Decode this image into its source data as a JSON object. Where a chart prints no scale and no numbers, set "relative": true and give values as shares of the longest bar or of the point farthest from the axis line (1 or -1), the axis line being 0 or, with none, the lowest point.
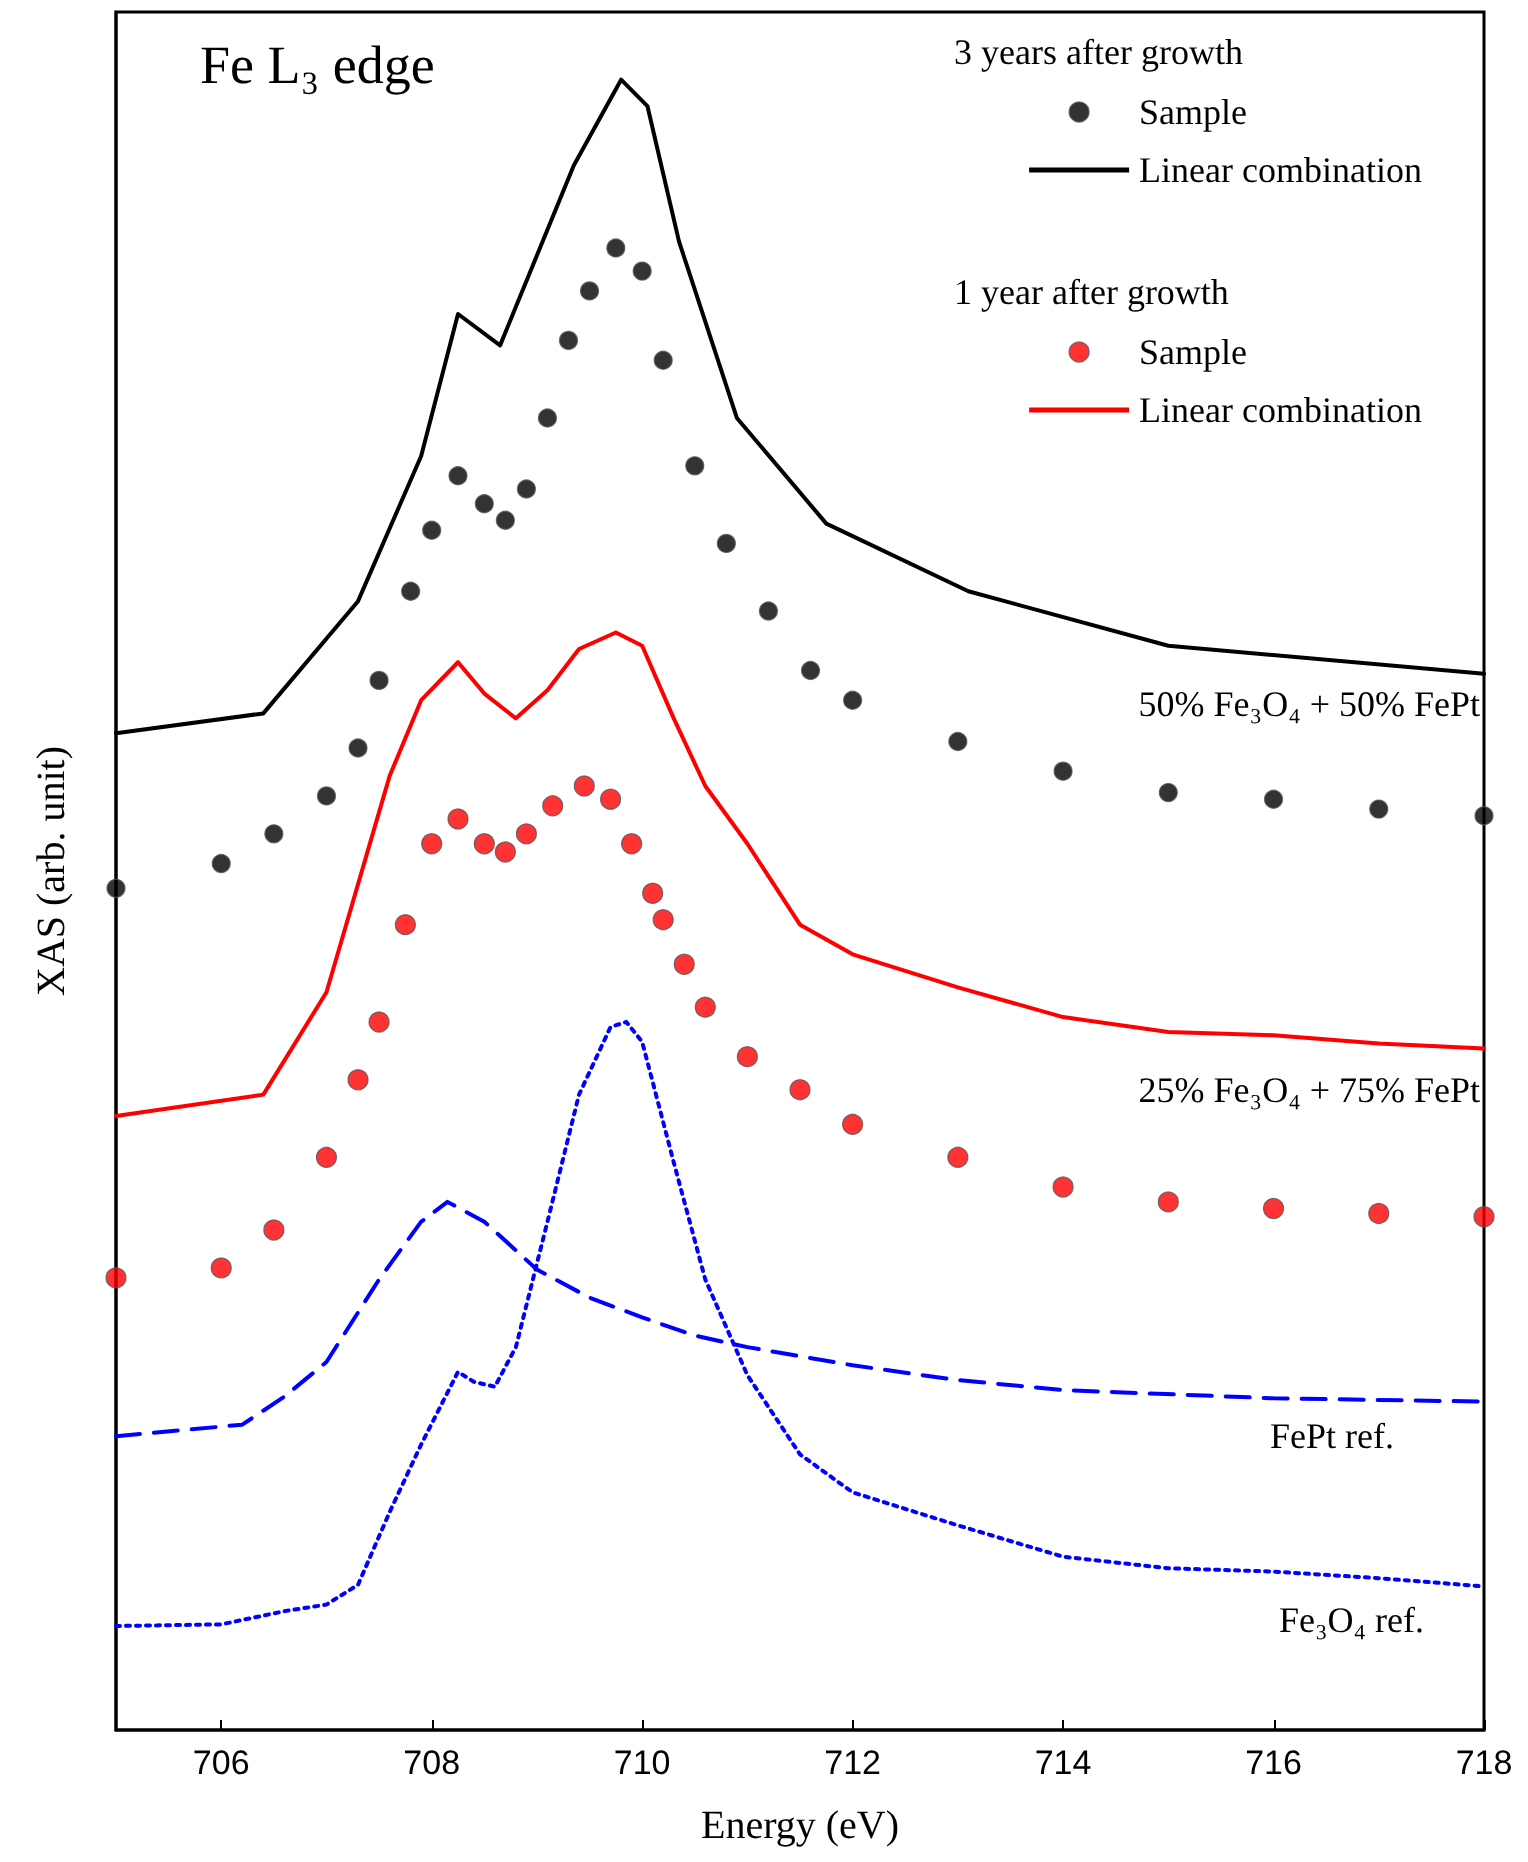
{
  "chart_data": {
    "type": "line",
    "title": "Fe L₃ edge",
    "xlabel": "Energy (eV)",
    "ylabel": "XAS (arb. unit)",
    "relative": true,
    "xlim": [
      705,
      718
    ],
    "xticks": [
      706,
      708,
      710,
      712,
      714,
      716,
      718
    ],
    "legend": "top right",
    "grid": false,
    "annotations": [
      "3 years after growth",
      "1 year after growth",
      "50% Fe₃O₄ + 50% FePt",
      "25% Fe₃O₄ + 75% FePt",
      "FePt ref.",
      "Fe₃O₄ ref."
    ],
    "series": [
      {
        "name": "Sample",
        "type": "scatter",
        "marker": "circle",
        "color": "#000000",
        "x": [
          705,
          706,
          706.5,
          707,
          707.3,
          707.5,
          707.8,
          708,
          708.25,
          708.5,
          708.7,
          708.9,
          709.1,
          709.3,
          709.5,
          709.75,
          710,
          710.2,
          710.5,
          710.8,
          711.2,
          711.6,
          712,
          713,
          714,
          715,
          716,
          717,
          718
        ],
        "values": [
          0.51,
          0.525,
          0.543,
          0.566,
          0.595,
          0.636,
          0.69,
          0.727,
          0.76,
          0.743,
          0.733,
          0.752,
          0.795,
          0.842,
          0.872,
          0.898,
          0.884,
          0.83,
          0.766,
          0.719,
          0.678,
          0.642,
          0.624,
          0.599,
          0.581,
          0.568,
          0.564,
          0.558,
          0.554
        ]
      },
      {
        "name": "Linear combination",
        "marker": "none",
        "line_style": "solid",
        "color": "#000000",
        "x": [
          705,
          706.4,
          707.3,
          707.9,
          708.25,
          708.65,
          709.35,
          709.8,
          710.05,
          710.35,
          710.9,
          711.75,
          713.1,
          715,
          718
        ],
        "values": [
          0.604,
          0.616,
          0.684,
          0.772,
          0.858,
          0.839,
          0.948,
          1,
          0.984,
          0.902,
          0.795,
          0.731,
          0.69,
          0.657,
          0.64
        ]
      },
      {
        "name": "Sample",
        "type": "scatter",
        "marker": "circle",
        "color": "#ff0000",
        "x": [
          705,
          706,
          706.5,
          707,
          707.3,
          707.5,
          707.75,
          708,
          708.25,
          708.5,
          708.7,
          708.9,
          709.15,
          709.45,
          709.7,
          709.9,
          710.1,
          710.2,
          710.4,
          710.6,
          711,
          711.5,
          712,
          713,
          714,
          715,
          716,
          717,
          718
        ],
        "values": [
          0.274,
          0.28,
          0.303,
          0.347,
          0.394,
          0.429,
          0.488,
          0.537,
          0.552,
          0.537,
          0.532,
          0.543,
          0.56,
          0.572,
          0.564,
          0.537,
          0.507,
          0.491,
          0.464,
          0.438,
          0.408,
          0.388,
          0.367,
          0.347,
          0.329,
          0.32,
          0.316,
          0.313,
          0.311
        ]
      },
      {
        "name": "Linear combination",
        "marker": "none",
        "line_style": "solid",
        "color": "#ff0000",
        "x": [
          705,
          706.4,
          707,
          707.6,
          707.9,
          708.25,
          708.5,
          708.8,
          709.1,
          709.4,
          709.75,
          710,
          710.3,
          710.6,
          711,
          711.5,
          712,
          713,
          714,
          715,
          716,
          717,
          718
        ],
        "values": [
          0.372,
          0.385,
          0.447,
          0.578,
          0.624,
          0.647,
          0.628,
          0.613,
          0.63,
          0.655,
          0.665,
          0.657,
          0.613,
          0.572,
          0.537,
          0.488,
          0.47,
          0.45,
          0.432,
          0.423,
          0.421,
          0.416,
          0.413
        ]
      },
      {
        "marker": "none",
        "line_style": "dashed",
        "color": "#0000ff",
        "x": [
          705,
          706.2,
          706.6,
          707,
          707.5,
          707.9,
          708.15,
          708.5,
          709,
          709.5,
          710,
          710.5,
          711,
          712,
          713,
          714,
          716,
          718
        ],
        "values": [
          0.178,
          0.185,
          0.202,
          0.223,
          0.273,
          0.308,
          0.32,
          0.308,
          0.279,
          0.262,
          0.25,
          0.239,
          0.232,
          0.221,
          0.212,
          0.206,
          0.201,
          0.199
        ]
      },
      {
        "marker": "none",
        "line_style": "dotted",
        "color": "#0000ff",
        "x": [
          705,
          706,
          706.6,
          707,
          707.3,
          707.6,
          707.9,
          708.25,
          708.4,
          708.6,
          708.8,
          709.1,
          709.4,
          709.7,
          709.85,
          710,
          710.3,
          710.6,
          711,
          711.5,
          712,
          713,
          714,
          715,
          716,
          717,
          718
        ],
        "values": [
          0.063,
          0.064,
          0.072,
          0.076,
          0.088,
          0.132,
          0.173,
          0.217,
          0.211,
          0.208,
          0.232,
          0.308,
          0.385,
          0.426,
          0.429,
          0.417,
          0.344,
          0.273,
          0.215,
          0.167,
          0.144,
          0.124,
          0.105,
          0.098,
          0.096,
          0.092,
          0.087
        ]
      }
    ]
  }
}
